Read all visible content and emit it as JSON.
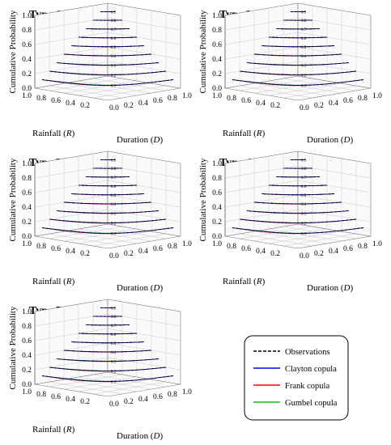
{
  "chart_data": {
    "type": "contour-3d",
    "axis_labels": {
      "z": "Cumulative Probability",
      "rain_prefix": "Rainfall (",
      "rain_var": "R",
      "dur_prefix": "Duration (",
      "dur_var": "D",
      "close": ")"
    },
    "z_ticks": [
      "0.0",
      "0.2",
      "0.4",
      "0.6",
      "0.8",
      "1.0"
    ],
    "rain_ticks": [
      "0.2",
      "0.4",
      "0.6",
      "0.8",
      "1.0"
    ],
    "dur_ticks": [
      "0.0",
      "0.2",
      "0.4",
      "0.6",
      "0.8",
      "1.0"
    ],
    "contour_levels": [
      "0.1",
      "0.2",
      "0.3",
      "0.4",
      "0.5",
      "0.6",
      "0.7",
      "0.8",
      "0.9"
    ],
    "zlim": [
      0,
      1
    ],
    "rlim": [
      0,
      1
    ],
    "dlim": [
      0,
      1
    ],
    "colors": {
      "observations": "#000000",
      "clayton": "#0000ff",
      "frank": "#ff0000",
      "gumbel": "#00cc00"
    },
    "panels": [
      {
        "title": "Type 1"
      },
      {
        "title": "Type 2"
      },
      {
        "title": "Type 3"
      },
      {
        "title": "Type 4"
      },
      {
        "title": "Type 5"
      }
    ],
    "legend": [
      {
        "label": "Observations",
        "style": "dashed",
        "color": "#000000"
      },
      {
        "label": "Clayton copula",
        "style": "solid",
        "color": "#0000ff"
      },
      {
        "label": "Frank copula",
        "style": "solid",
        "color": "#ff0000"
      },
      {
        "label": "Gumbel copula",
        "style": "solid",
        "color": "#00cc00"
      }
    ]
  }
}
